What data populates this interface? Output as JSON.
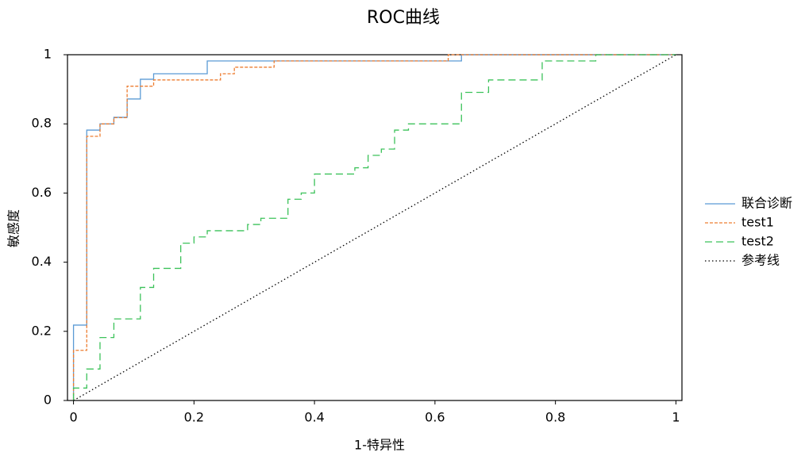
{
  "chart_data": {
    "type": "line",
    "title": "ROC曲线",
    "x_label": "1-特异性",
    "y_label": "敏感度",
    "xlim": [
      -0.01,
      1.01
    ],
    "ylim": [
      0,
      1
    ],
    "xticks": [
      0,
      0.2,
      0.4,
      0.6,
      0.8,
      1
    ],
    "yticks": [
      0,
      0.2,
      0.4,
      0.6,
      0.8,
      1
    ],
    "grid": false,
    "legend": "right",
    "series": [
      {
        "name": "联合诊断",
        "color": "#5b9bd5",
        "dash": "solid",
        "x": [
          0,
          0,
          0.022,
          0.022,
          0.044,
          0.044,
          0.067,
          0.067,
          0.089,
          0.089,
          0.111,
          0.111,
          0.133,
          0.133,
          0.222,
          0.222,
          0.644,
          0.644,
          1
        ],
        "values": [
          0,
          0.218,
          0.218,
          0.782,
          0.782,
          0.8,
          0.8,
          0.819,
          0.819,
          0.872,
          0.872,
          0.929,
          0.929,
          0.945,
          0.945,
          0.982,
          0.982,
          1,
          1
        ]
      },
      {
        "name": "test1",
        "color": "#ed7d31",
        "dash": "dashed",
        "x": [
          0,
          0,
          0.022,
          0.022,
          0.044,
          0.044,
          0.067,
          0.067,
          0.089,
          0.089,
          0.133,
          0.133,
          0.244,
          0.244,
          0.267,
          0.267,
          0.333,
          0.333,
          0.622,
          0.622,
          1
        ],
        "values": [
          0,
          0.145,
          0.145,
          0.764,
          0.764,
          0.8,
          0.8,
          0.818,
          0.818,
          0.909,
          0.909,
          0.927,
          0.927,
          0.945,
          0.945,
          0.964,
          0.964,
          0.982,
          0.982,
          1,
          1
        ]
      },
      {
        "name": "test2",
        "color": "#3cc25a",
        "dash": "long-dashed",
        "x": [
          0,
          0,
          0.022,
          0.022,
          0.044,
          0.044,
          0.067,
          0.067,
          0.111,
          0.111,
          0.133,
          0.133,
          0.178,
          0.178,
          0.2,
          0.2,
          0.222,
          0.222,
          0.289,
          0.289,
          0.311,
          0.311,
          0.356,
          0.356,
          0.378,
          0.378,
          0.4,
          0.4,
          0.467,
          0.467,
          0.489,
          0.489,
          0.511,
          0.511,
          0.533,
          0.533,
          0.556,
          0.556,
          0.644,
          0.644,
          0.689,
          0.689,
          0.778,
          0.778,
          0.867,
          0.867,
          1
        ],
        "values": [
          0,
          0.036,
          0.036,
          0.091,
          0.091,
          0.182,
          0.182,
          0.236,
          0.236,
          0.327,
          0.327,
          0.382,
          0.382,
          0.455,
          0.455,
          0.473,
          0.473,
          0.491,
          0.491,
          0.509,
          0.509,
          0.527,
          0.527,
          0.582,
          0.582,
          0.6,
          0.6,
          0.655,
          0.655,
          0.673,
          0.673,
          0.709,
          0.709,
          0.727,
          0.727,
          0.782,
          0.782,
          0.8,
          0.8,
          0.891,
          0.891,
          0.927,
          0.927,
          0.982,
          0.982,
          1,
          1
        ]
      },
      {
        "name": "参考线",
        "color": "#000000",
        "dash": "dotted",
        "x": [
          0,
          1
        ],
        "values": [
          0,
          1
        ]
      }
    ]
  }
}
